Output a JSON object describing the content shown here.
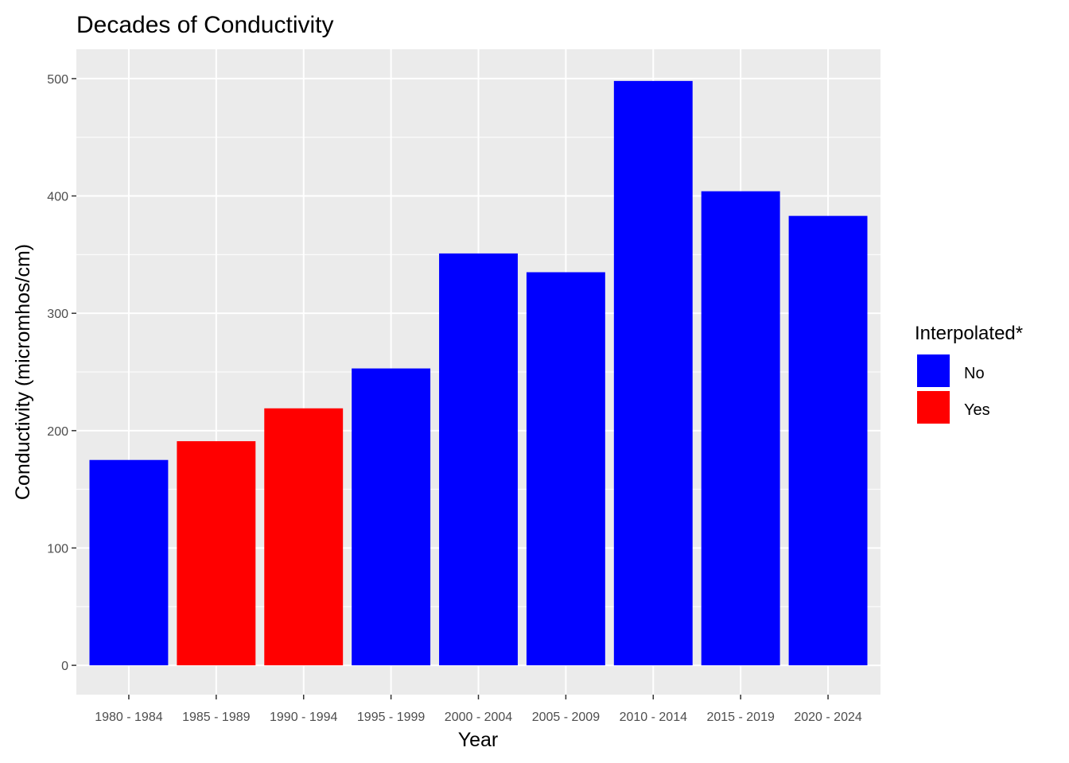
{
  "chart_data": {
    "type": "bar",
    "title": "Decades of Conductivity",
    "xlabel": "Year",
    "ylabel": "Conductivity (micromhos/cm)",
    "categories": [
      "1980 - 1984",
      "1985 - 1989",
      "1990 - 1994",
      "1995 - 1999",
      "2000 - 2004",
      "2005 - 2009",
      "2010 - 2014",
      "2015 - 2019",
      "2020 - 2024"
    ],
    "values": [
      175,
      191,
      219,
      253,
      351,
      335,
      498,
      404,
      383
    ],
    "interpolated": [
      "No",
      "Yes",
      "Yes",
      "No",
      "No",
      "No",
      "No",
      "No",
      "No"
    ],
    "ylim": [
      -25,
      525
    ],
    "yticks": [
      0,
      100,
      200,
      300,
      400,
      500
    ],
    "grid": true,
    "legend": {
      "title": "Interpolated*",
      "placement": "right",
      "items": [
        {
          "label": "No",
          "color": "#0000ff"
        },
        {
          "label": "Yes",
          "color": "#ff0000"
        }
      ]
    },
    "colors": {
      "No": "#0000ff",
      "Yes": "#ff0000",
      "panel": "#ebebeb",
      "grid": "#ffffff"
    }
  }
}
